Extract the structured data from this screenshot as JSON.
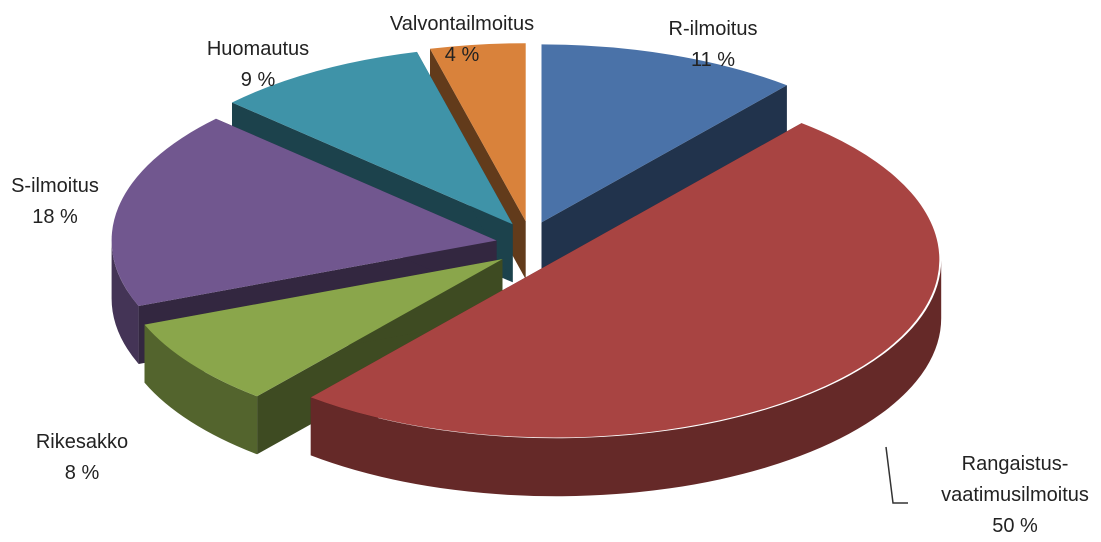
{
  "chart_data": {
    "type": "pie3d",
    "categories": [
      "R-ilmoitus",
      "Rangaistus-vaatimusilmoitus",
      "Rikesakko",
      "S-ilmoitus",
      "Huomautus",
      "Valvontailmoitus"
    ],
    "values": [
      11,
      50,
      8,
      18,
      9,
      4
    ],
    "value_labels": [
      "11 %",
      "50 %",
      "8 %",
      "18 %",
      "9 %",
      "4 %"
    ],
    "colors": [
      "#4a72a8",
      "#a84442",
      "#8aa64b",
      "#71578f",
      "#3f93a8",
      "#d9823b"
    ]
  }
}
